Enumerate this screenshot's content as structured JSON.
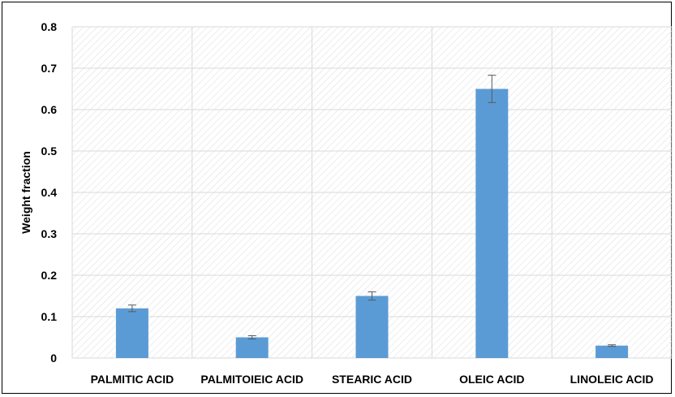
{
  "chart_data": {
    "type": "bar",
    "title": "",
    "xlabel": "",
    "ylabel": "Weight fraction",
    "categories": [
      "PALMITIC ACID",
      "PALMITOIEIC ACID",
      "STEARIC ACID",
      "OLEIC ACID",
      "LINOLEIC ACID"
    ],
    "values": [
      0.12,
      0.05,
      0.15,
      0.65,
      0.03
    ],
    "errors": [
      0.008,
      0.004,
      0.01,
      0.033,
      0.002
    ],
    "ylim": [
      0,
      0.8
    ],
    "yticks": [
      "0",
      "0.1",
      "0.2",
      "0.3",
      "0.4",
      "0.5",
      "0.6",
      "0.7",
      "0.8"
    ],
    "grid": true,
    "legend": "none",
    "colors": {
      "bar": "#5b9bd5",
      "grid": "#d9d9d9",
      "hatch": "#dcdcdc",
      "error": "#595959"
    }
  }
}
